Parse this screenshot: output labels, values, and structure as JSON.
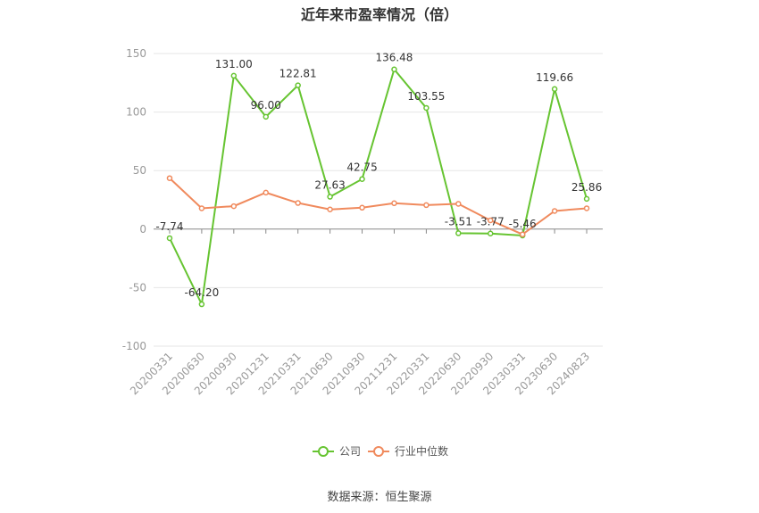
{
  "title": "近年来市盈率情况（倍）",
  "source": "数据来源：恒生聚源",
  "colors": {
    "company": "#66c431",
    "industry": "#f08a5d"
  },
  "chart_data": {
    "type": "line",
    "categories": [
      "20200331",
      "20200630",
      "20200930",
      "20201231",
      "20210331",
      "20210630",
      "20210930",
      "20211231",
      "20220331",
      "20220630",
      "20220930",
      "20230331",
      "20230630",
      "20240823"
    ],
    "ylim": [
      -100,
      150
    ],
    "yticks": [
      -100,
      -50,
      0,
      50,
      100,
      150
    ],
    "ytick_labels": [
      "-100",
      "-50",
      "0",
      "50",
      "100",
      "150"
    ],
    "grid": true,
    "legend_position": "bottom",
    "series": [
      {
        "name": "公司",
        "color": "#66c431",
        "values": [
          -7.74,
          -64.2,
          131.0,
          96.0,
          122.81,
          27.63,
          42.75,
          136.48,
          103.55,
          -3.51,
          -3.77,
          -5.46,
          119.66,
          25.86
        ],
        "labels": [
          "-7.74",
          "-64.20",
          "131.00",
          "96.00",
          "122.81",
          "27.63",
          "42.75",
          "136.48",
          "103.55",
          "-3.51",
          "-3.77",
          "-5.46",
          "119.66",
          "25.86"
        ]
      },
      {
        "name": "行业中位数",
        "color": "#f08a5d",
        "values": [
          43.5,
          17.8,
          19.6,
          31.2,
          22.3,
          16.8,
          18.3,
          22.1,
          20.5,
          21.6,
          7.5,
          -4.5,
          15.5,
          17.8
        ]
      }
    ]
  }
}
